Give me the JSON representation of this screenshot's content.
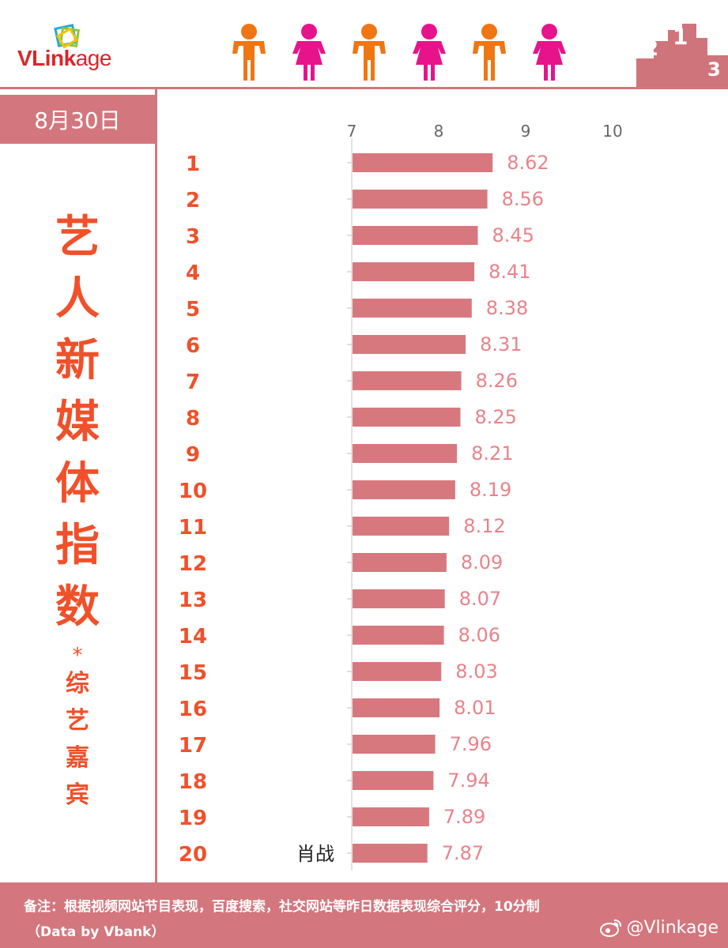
{
  "header": {
    "logo_text_bold": "VLink",
    "logo_text_light": "age",
    "people_colors": [
      "#ef7613",
      "#e7138b",
      "#ef7613",
      "#e7138b",
      "#ef7613",
      "#e7138b"
    ],
    "podium_numbers": [
      "2",
      "1",
      "3"
    ],
    "accent_color": "#d3767d"
  },
  "left_panel": {
    "date": "8月30日",
    "title_chars": [
      "艺",
      "人",
      "新",
      "媒",
      "体",
      "指",
      "数"
    ],
    "star": "*",
    "subtitle_chars": [
      "综",
      "艺",
      "嘉",
      "宾"
    ]
  },
  "chart_data": {
    "type": "bar",
    "orientation": "horizontal",
    "xlim": [
      7,
      10
    ],
    "xticks": [
      7,
      8,
      9,
      10
    ],
    "categories": [
      "1",
      "2",
      "3",
      "4",
      "5",
      "6",
      "7",
      "8",
      "9",
      "10",
      "11",
      "12",
      "13",
      "14",
      "15",
      "16",
      "17",
      "18",
      "19",
      "20"
    ],
    "names": [
      "",
      "",
      "",
      "",
      "",
      "",
      "",
      "",
      "",
      "",
      "",
      "",
      "",
      "",
      "",
      "",
      "",
      "",
      "",
      "肖战"
    ],
    "values": [
      8.62,
      8.56,
      8.45,
      8.41,
      8.38,
      8.31,
      8.26,
      8.25,
      8.21,
      8.19,
      8.12,
      8.09,
      8.07,
      8.06,
      8.03,
      8.01,
      7.96,
      7.94,
      7.89,
      7.87
    ],
    "value_labels": [
      "8.62",
      "8.56",
      "8.45",
      "8.41",
      "8.38",
      "8.31",
      "8.26",
      "8.25",
      "8.21",
      "8.19",
      "8.12",
      "8.09",
      "8.07",
      "8.06",
      "8.03",
      "8.01",
      "7.96",
      "7.94",
      "7.89",
      "7.87"
    ],
    "bar_color": "#d7787f",
    "rank_color": "#f0502a",
    "value_label_color": "#e8838a",
    "grid": false
  },
  "footer": {
    "note": "备注：根据视频网站节目表现，百度搜索，社交网站等昨日数据表现综合评分，10分制",
    "source": "（Data by Vbank）",
    "watermark_handle": "@Vlinkage"
  }
}
